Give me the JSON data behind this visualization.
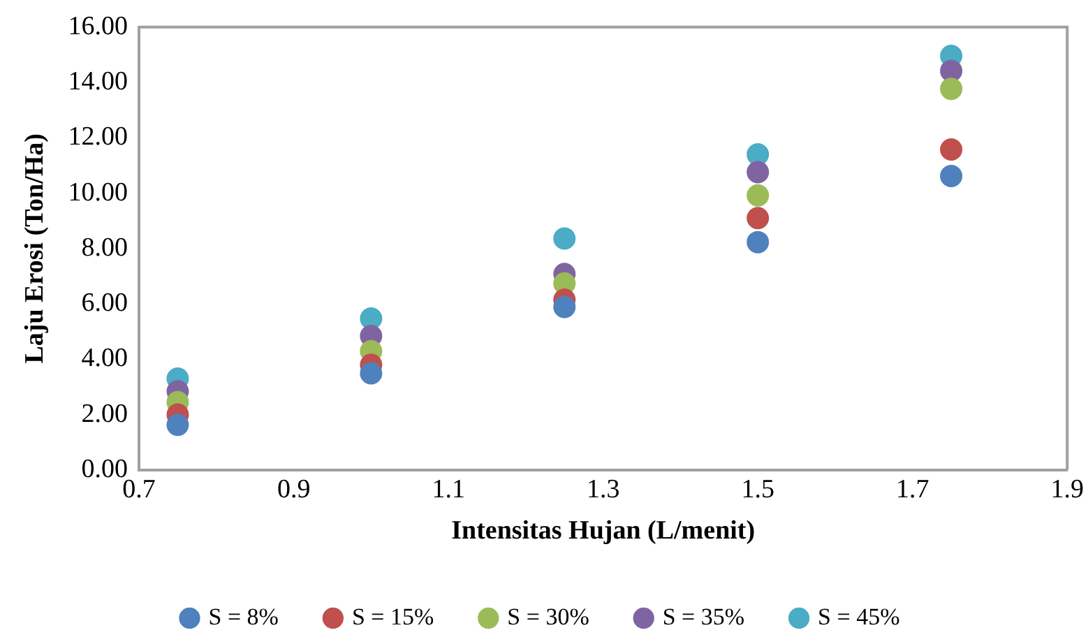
{
  "chart_data": {
    "type": "scatter",
    "xlabel": "Intensitas Hujan (L/menit)",
    "ylabel": "Laju Erosi (Ton/Ha)",
    "x": [
      0.75,
      1.0,
      1.25,
      1.5,
      1.75
    ],
    "series": [
      {
        "name": "S = 8%",
        "color": "#4f81bd",
        "values": [
          1.63,
          3.49,
          5.89,
          8.23,
          10.62
        ]
      },
      {
        "name": "S = 15%",
        "color": "#c0504d",
        "values": [
          2.0,
          3.8,
          6.15,
          9.1,
          11.58
        ]
      },
      {
        "name": "S = 30%",
        "color": "#9bbb59",
        "values": [
          2.45,
          4.29,
          6.74,
          9.92,
          13.77
        ]
      },
      {
        "name": "S = 35%",
        "color": "#8064a2",
        "values": [
          2.84,
          4.84,
          7.08,
          10.76,
          14.42
        ]
      },
      {
        "name": "S = 45%",
        "color": "#4bacc6",
        "values": [
          3.3,
          5.47,
          8.36,
          11.4,
          14.96
        ]
      }
    ],
    "xlim": [
      0.7,
      1.9
    ],
    "xticks": [
      0.7,
      0.9,
      1.1,
      1.3,
      1.5,
      1.7,
      1.9
    ],
    "ylim": [
      0,
      16
    ],
    "yticks": [
      {
        "value": 0,
        "label": "0.00"
      },
      {
        "value": 2,
        "label": "2.00"
      },
      {
        "value": 4,
        "label": "4.00"
      },
      {
        "value": 6,
        "label": "6.00"
      },
      {
        "value": 8,
        "label": "8.00"
      },
      {
        "value": 10,
        "label": "10.00"
      },
      {
        "value": 12,
        "label": "12.00"
      },
      {
        "value": 14,
        "label": "14.00"
      },
      {
        "value": 16,
        "label": "16.00"
      }
    ],
    "grid": false,
    "legend": "bottom",
    "marker": "circle"
  }
}
